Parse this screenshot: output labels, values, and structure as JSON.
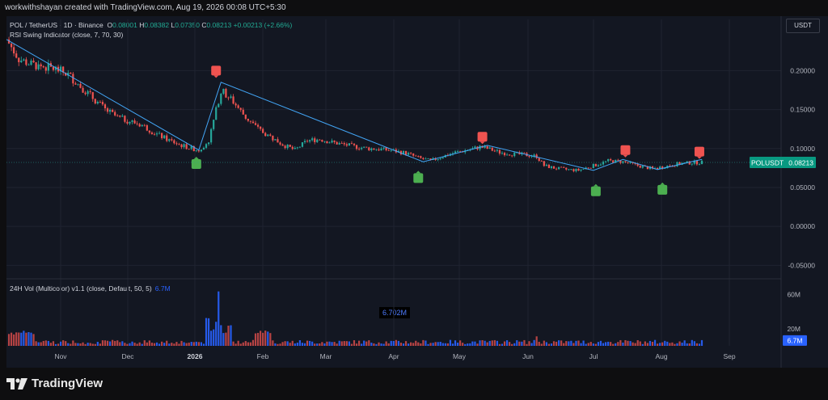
{
  "header": {
    "creator_line": "workwithshayan created with TradingView.com, Aug 19, 2026 00:08 UTC+5:30"
  },
  "legend": {
    "symbol": "POL / TetherUS · 1D · Binance",
    "o_label": "O",
    "o_value": "0.08001",
    "h_label": "H",
    "h_value": "0.08382",
    "l_label": "L",
    "l_value": "0.07350",
    "c_label": "C",
    "c_value": "0.08213",
    "change": "+0.00213 (+2.66%)",
    "indicator": "RSI Swing Indicator (close, 7, 70, 30)"
  },
  "currency_button": "USDT",
  "volume_legend": {
    "label": "24H Vol (Multicolor) v1.1 (close, Default, 50, 5)",
    "value": "6.7M",
    "tooltip": "6.702M",
    "badge": "6.7M"
  },
  "price_badge": {
    "symbol": "POLUSDT",
    "value": "0.08213"
  },
  "brand": "TradingView",
  "colors": {
    "up": "#26a69a",
    "down": "#ef5350",
    "line": "#42a5f5",
    "vol": "#2962ff"
  },
  "chart_data": {
    "type": "candlestick",
    "y_axis": {
      "ticks": [
        "0.20000",
        "0.15000",
        "0.10000",
        "0.05000",
        "0.00000",
        "-0.05000"
      ],
      "tick_values": [
        0.2,
        0.15,
        0.1,
        0.05,
        0.0,
        -0.05
      ],
      "ylim": [
        -0.06,
        0.245
      ]
    },
    "x_axis": {
      "ticks": [
        "Nov",
        "Dec",
        "2026",
        "Feb",
        "Mar",
        "Apr",
        "May",
        "Jun",
        "Jul",
        "Aug",
        "Sep"
      ]
    },
    "volume_axis": {
      "ticks": [
        "60M",
        "20M"
      ],
      "tick_values": [
        60,
        20
      ]
    },
    "price_path": [
      [
        0,
        0.24
      ],
      [
        5,
        0.215
      ],
      [
        10,
        0.208
      ],
      [
        15,
        0.205
      ],
      [
        20,
        0.202
      ],
      [
        25,
        0.195
      ],
      [
        30,
        0.18
      ],
      [
        35,
        0.165
      ],
      [
        40,
        0.15
      ],
      [
        45,
        0.14
      ],
      [
        50,
        0.135
      ],
      [
        55,
        0.13
      ],
      [
        60,
        0.12
      ],
      [
        65,
        0.112
      ],
      [
        70,
        0.105
      ],
      [
        75,
        0.1
      ],
      [
        78,
        0.098
      ],
      [
        82,
        0.11
      ],
      [
        87,
        0.175
      ],
      [
        92,
        0.16
      ],
      [
        97,
        0.14
      ],
      [
        102,
        0.125
      ],
      [
        107,
        0.115
      ],
      [
        112,
        0.105
      ],
      [
        117,
        0.098
      ],
      [
        122,
        0.11
      ],
      [
        127,
        0.112
      ],
      [
        132,
        0.108
      ],
      [
        137,
        0.105
      ],
      [
        142,
        0.102
      ],
      [
        147,
        0.1
      ],
      [
        152,
        0.099
      ],
      [
        157,
        0.097
      ],
      [
        162,
        0.094
      ],
      [
        167,
        0.088
      ],
      [
        172,
        0.084
      ],
      [
        177,
        0.09
      ],
      [
        182,
        0.095
      ],
      [
        187,
        0.098
      ],
      [
        192,
        0.102
      ],
      [
        195,
        0.1
      ],
      [
        200,
        0.095
      ],
      [
        205,
        0.093
      ],
      [
        210,
        0.092
      ],
      [
        215,
        0.09
      ],
      [
        218,
        0.078
      ],
      [
        222,
        0.075
      ],
      [
        227,
        0.073
      ],
      [
        232,
        0.072
      ],
      [
        238,
        0.078
      ],
      [
        244,
        0.084
      ],
      [
        250,
        0.083
      ],
      [
        256,
        0.078
      ],
      [
        262,
        0.074
      ],
      [
        267,
        0.077
      ],
      [
        272,
        0.08
      ],
      [
        278,
        0.082
      ],
      [
        282,
        0.082
      ]
    ],
    "swing_lines": [
      {
        "points": [
          [
            0,
            0.24
          ],
          [
            78,
            0.098
          ],
          [
            87,
            0.185
          ],
          [
            169,
            0.083
          ],
          [
            195,
            0.104
          ],
          [
            238,
            0.072
          ],
          [
            250,
            0.086
          ],
          [
            264,
            0.073
          ],
          [
            282,
            0.086
          ]
        ]
      }
    ],
    "swing_markers": [
      {
        "type": "high",
        "index": 85,
        "value": 0.2
      },
      {
        "type": "high",
        "index": 193,
        "value": 0.115
      },
      {
        "type": "high",
        "index": 251,
        "value": 0.098
      },
      {
        "type": "high",
        "index": 281,
        "value": 0.096
      },
      {
        "type": "low",
        "index": 77,
        "value": 0.08
      },
      {
        "type": "low",
        "index": 167,
        "value": 0.062
      },
      {
        "type": "low",
        "index": 239,
        "value": 0.045
      },
      {
        "type": "low",
        "index": 266,
        "value": 0.047
      }
    ],
    "volume_peak_m": 68,
    "last_volume_m": 6.7
  }
}
